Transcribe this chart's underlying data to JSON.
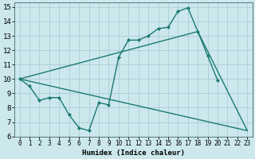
{
  "xlabel": "Humidex (Indice chaleur)",
  "bg_color": "#cce8ed",
  "grid_color": "#aacdd4",
  "line_color": "#1a7a6e",
  "xlim": [
    -0.5,
    23.5
  ],
  "ylim": [
    6,
    15.3
  ],
  "xticks": [
    0,
    1,
    2,
    3,
    4,
    5,
    6,
    7,
    8,
    9,
    10,
    11,
    12,
    13,
    14,
    15,
    16,
    17,
    18,
    19,
    20,
    21,
    22,
    23
  ],
  "yticks": [
    6,
    7,
    8,
    9,
    10,
    11,
    12,
    13,
    14,
    15
  ],
  "curve_x": [
    0,
    1,
    2,
    3,
    4,
    5,
    6,
    7,
    8,
    9,
    10,
    11,
    12,
    13,
    14,
    15,
    16,
    17,
    18,
    19,
    20
  ],
  "curve_y": [
    10.0,
    9.5,
    8.5,
    8.7,
    8.7,
    7.5,
    6.6,
    6.4,
    8.35,
    8.2,
    11.5,
    12.7,
    12.7,
    13.0,
    13.5,
    13.6,
    14.7,
    14.95,
    13.3,
    11.6,
    9.9
  ],
  "tri_line1": [
    [
      0,
      10.0
    ],
    [
      18,
      13.3
    ],
    [
      23,
      6.4
    ]
  ],
  "tri_line2": [
    [
      0,
      10.0
    ],
    [
      23,
      6.4
    ]
  ],
  "lw": 1.0,
  "ms": 2.5,
  "xlabel_fontsize": 6.5,
  "tick_fontsize_x": 5.5,
  "tick_fontsize_y": 6.5
}
